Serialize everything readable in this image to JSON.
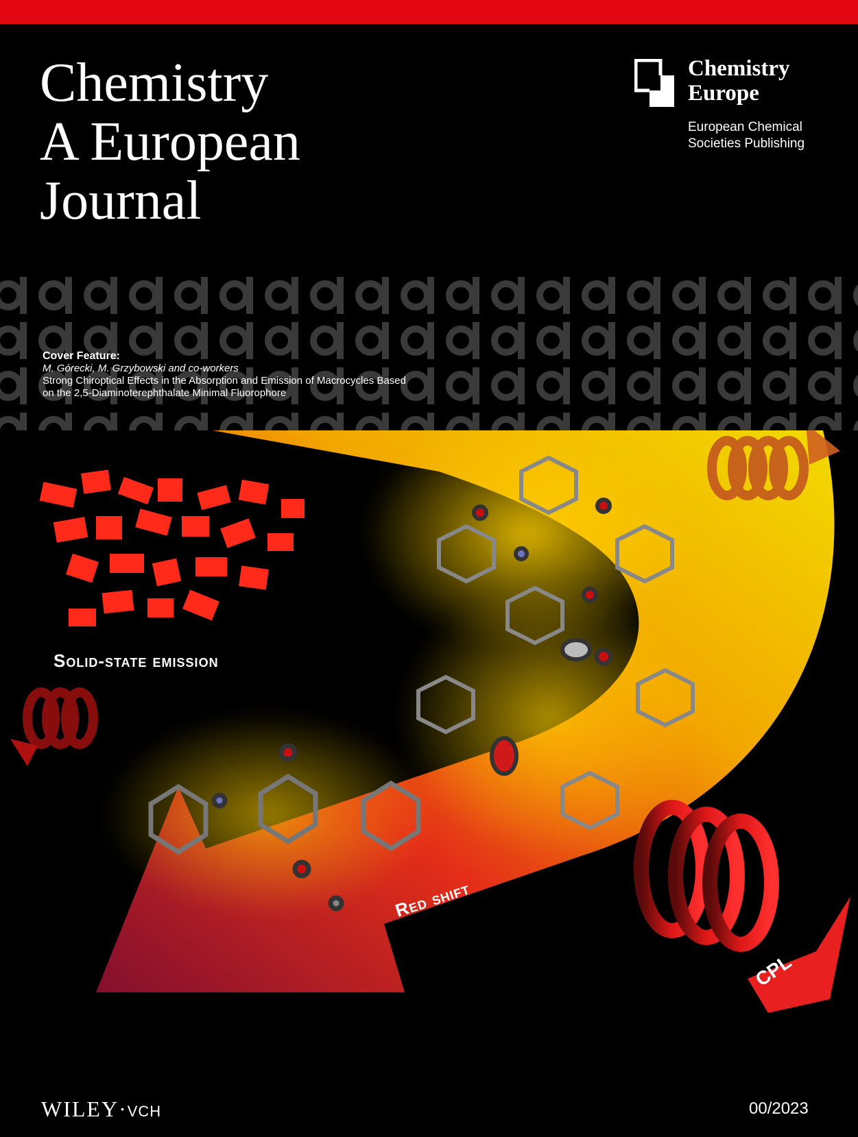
{
  "journal": {
    "title_lines": [
      "Chemistry",
      "A European",
      "Journal"
    ]
  },
  "publisher_logo": {
    "name_lines": [
      "Chemistry",
      "Europe"
    ],
    "subtitle_lines": [
      "European Chemical",
      "Societies Publishing"
    ]
  },
  "cover_feature": {
    "heading": "Cover Feature:",
    "authors": "M. Górecki, M. Grzybowski and co-workers",
    "title_line1": "Strong Chiroptical Effects in the Absorption and Emission of Macrocycles Based",
    "title_line2": "on the 2,5-Diaminoterephthalate Minimal Fluorophore"
  },
  "artwork": {
    "solid_state_label": "Solid-state emission",
    "red_shift_label": "Red shift",
    "cpl_label": "CPL"
  },
  "footer": {
    "publisher": "WILEY",
    "publisher_suffix": "VCH",
    "issue": "00/2023"
  },
  "colors": {
    "top_bar": "#e30613",
    "background": "#000000",
    "band_pattern": "#3a3a3a"
  }
}
